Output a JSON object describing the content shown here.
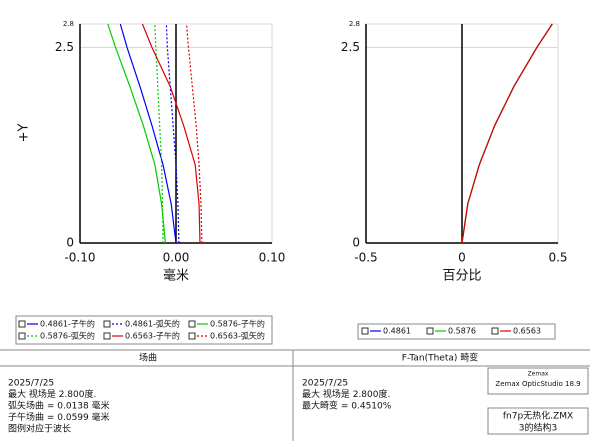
{
  "chart_data": [
    {
      "type": "line",
      "ylabel": "+Y",
      "xlabel": "毫米",
      "y": [
        0,
        0.5,
        1.0,
        1.5,
        2.0,
        2.5,
        2.8
      ],
      "xlim": [
        -0.1,
        0.1
      ],
      "ylim": [
        0,
        2.8
      ],
      "grid": true,
      "xticks": [
        {
          "value": -0.1,
          "label": "-0.10"
        },
        {
          "value": 0,
          "label": "0.00"
        },
        {
          "value": 0.1,
          "label": "0.10"
        }
      ],
      "yticks": [
        0,
        2.5,
        2.8
      ],
      "series": [
        {
          "name": "0.4861-子午的",
          "color": "#0000ff",
          "style": "solid",
          "values": [
            0,
            -0.005,
            -0.0135,
            -0.025,
            -0.0375,
            -0.051,
            -0.058
          ]
        },
        {
          "name": "0.4861-弧矢的",
          "color": "#0000ff",
          "style": "dotted",
          "values": [
            0.003,
            0.002,
            0.0,
            -0.003,
            -0.006,
            -0.009,
            -0.01
          ]
        },
        {
          "name": "0.5876-子午的",
          "color": "#00cc00",
          "style": "solid",
          "values": [
            -0.011,
            -0.015,
            -0.022,
            -0.034,
            -0.048,
            -0.063,
            -0.071
          ]
        },
        {
          "name": "0.5876-弧矢的",
          "color": "#00cc00",
          "style": "dotted",
          "values": [
            -0.0135,
            -0.014,
            -0.015,
            -0.017,
            -0.019,
            -0.021,
            -0.022
          ]
        },
        {
          "name": "0.6563-子午的",
          "color": "#e00000",
          "style": "solid",
          "values": [
            0.025,
            0.024,
            0.02,
            0.008,
            -0.006,
            -0.025,
            -0.035
          ]
        },
        {
          "name": "0.6563-弧矢的",
          "color": "#e00000",
          "style": "dotted",
          "values": [
            0.027,
            0.026,
            0.024,
            0.021,
            0.017,
            0.013,
            0.011
          ]
        }
      ]
    },
    {
      "type": "line",
      "xlabel": "百分比",
      "y": [
        0,
        0.5,
        1.0,
        1.5,
        2.0,
        2.5,
        2.8
      ],
      "xlim": [
        -0.5,
        0.5
      ],
      "ylim": [
        0,
        2.8
      ],
      "grid": true,
      "xticks": [
        -0.5,
        0,
        0.5
      ],
      "yticks": [
        0,
        2.5,
        2.8
      ],
      "series": [
        {
          "name": "0.4861",
          "color": "#0000ff",
          "style": "solid",
          "values": [
            0,
            0.03,
            0.09,
            0.17,
            0.27,
            0.39,
            0.47
          ]
        },
        {
          "name": "0.5876",
          "color": "#00cc00",
          "style": "solid",
          "values": [
            0,
            0.03,
            0.09,
            0.17,
            0.27,
            0.39,
            0.47
          ]
        },
        {
          "name": "0.6563",
          "color": "#e00000",
          "style": "solid",
          "values": [
            0,
            0.03,
            0.09,
            0.17,
            0.27,
            0.39,
            0.47
          ]
        }
      ]
    }
  ],
  "footer": {
    "panels": [
      {
        "title": "场曲",
        "lines": [
          "2025/7/25",
          "最大 视场是 2.800度.",
          "弧矢场曲 = 0.0138 毫米",
          "子午场曲 = 0.0599 毫米",
          "图例对应于波长"
        ]
      },
      {
        "title": "F-Tan(Theta) 畸变",
        "lines": [
          "2025/7/25",
          "最大 视场是 2.800度.",
          "最大畸变 = 0.4510%"
        ],
        "stamp": [
          "Zemax",
          "Zemax OpticStudio 18.9"
        ],
        "file": [
          "fn7p无热化.ZMX",
          "3的结构3"
        ]
      }
    ]
  }
}
